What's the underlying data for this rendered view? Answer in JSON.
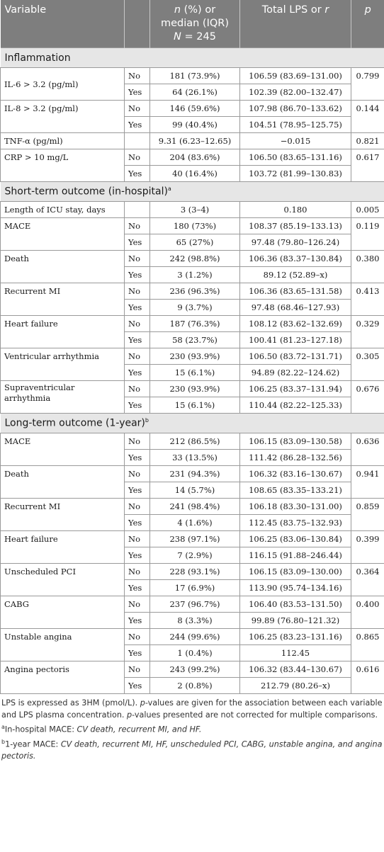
{
  "header": {
    "variable": "Variable",
    "n_line1": "n",
    "n_line1_rest": " (%) or",
    "n_line2": "median (IQR)",
    "n_line3_italic": "N",
    "n_line3_rest": " = 245",
    "lps": "Total LPS or ",
    "lps_r": "r",
    "p": "p"
  },
  "sections": {
    "inflammation": "Inflammation",
    "short_term": "Short-term outcome (in-hospital)",
    "short_term_sup": "a",
    "long_term": "Long-term outcome (1-year)",
    "long_term_sup": "b"
  },
  "rows": {
    "il6": {
      "label": "IL-6 > 3.2 (pg/ml)",
      "p": "0.799",
      "no": {
        "g": "No",
        "n": "181 (73.9%)",
        "lps": "106.59 (83.69–131.00)"
      },
      "yes": {
        "g": "Yes",
        "n": "64 (26.1%)",
        "lps": "102.39 (82.00–132.47)"
      }
    },
    "il8": {
      "label": "IL-8 > 3.2 (pg/ml)",
      "p": "0.144",
      "no": {
        "g": "No",
        "n": "146 (59.6%)",
        "lps": "107.98 (86.70–133.62)"
      },
      "yes": {
        "g": "Yes",
        "n": "99 (40.4%)",
        "lps": "104.51 (78.95–125.75)"
      }
    },
    "tnf": {
      "label": "TNF-α (pg/ml)",
      "n": "9.31 (6.23–12.65)",
      "lps": "−0.015",
      "p": "0.821"
    },
    "crp": {
      "label": "CRP > 10 mg/L",
      "p": "0.617",
      "no": {
        "g": "No",
        "n": "204 (83.6%)",
        "lps": "106.50 (83.65–131.16)"
      },
      "yes": {
        "g": "Yes",
        "n": "40 (16.4%)",
        "lps": "103.72 (81.99–130.83)"
      }
    },
    "icu": {
      "label": "Length of ICU stay, days",
      "n": "3 (3–4)",
      "lps": "0.180",
      "p": "0.005"
    },
    "st_mace": {
      "label": "MACE",
      "p": "0.119",
      "no": {
        "g": "No",
        "n": "180 (73%)",
        "lps": "108.37 (85.19–133.13)"
      },
      "yes": {
        "g": "Yes",
        "n": "65 (27%)",
        "lps": "97.48 (79.80–126.24)"
      }
    },
    "st_death": {
      "label": "Death",
      "p": "0.380",
      "no": {
        "g": "No",
        "n": "242 (98.8%)",
        "lps": "106.36 (83.37–130.84)"
      },
      "yes": {
        "g": "Yes",
        "n": "3 (1.2%)",
        "lps": "89.12 (52.89–x)"
      }
    },
    "st_rmi": {
      "label": "Recurrent MI",
      "p": "0.413",
      "no": {
        "g": "No",
        "n": "236 (96.3%)",
        "lps": "106.36 (83.65–131.58)"
      },
      "yes": {
        "g": "Yes",
        "n": "9 (3.7%)",
        "lps": "97.48 (68.46–127.93)"
      }
    },
    "st_hf": {
      "label": "Heart failure",
      "p": "0.329",
      "no": {
        "g": "No",
        "n": "187 (76.3%)",
        "lps": "108.12 (83.62–132.69)"
      },
      "yes": {
        "g": "Yes",
        "n": "58 (23.7%)",
        "lps": "100.41 (81.23–127.18)"
      }
    },
    "st_va": {
      "label": "Ventricular arrhythmia",
      "p": "0.305",
      "no": {
        "g": "No",
        "n": "230 (93.9%)",
        "lps": "106.50 (83.72–131.71)"
      },
      "yes": {
        "g": "Yes",
        "n": "15 (6.1%)",
        "lps": "94.89 (82.22–124.62)"
      }
    },
    "st_sva": {
      "label": "Supraventricular arrhythmia",
      "p": "0.676",
      "no": {
        "g": "No",
        "n": "230 (93.9%)",
        "lps": "106.25 (83.37–131.94)"
      },
      "yes": {
        "g": "Yes",
        "n": "15 (6.1%)",
        "lps": "110.44 (82.22–125.33)"
      }
    },
    "lt_mace": {
      "label": "MACE",
      "p": "0.636",
      "no": {
        "g": "No",
        "n": "212 (86.5%)",
        "lps": "106.15 (83.09–130.58)"
      },
      "yes": {
        "g": "Yes",
        "n": "33 (13.5%)",
        "lps": "111.42 (86.28–132.56)"
      }
    },
    "lt_death": {
      "label": "Death",
      "p": "0.941",
      "no": {
        "g": "No",
        "n": "231 (94.3%)",
        "lps": "106.32 (83.16–130.67)"
      },
      "yes": {
        "g": "Yes",
        "n": "14 (5.7%)",
        "lps": "108.65 (83.35–133.21)"
      }
    },
    "lt_rmi": {
      "label": "Recurrent MI",
      "p": "0.859",
      "no": {
        "g": "No",
        "n": "241 (98.4%)",
        "lps": "106.18 (83.30–131.00)"
      },
      "yes": {
        "g": "Yes",
        "n": "4 (1.6%)",
        "lps": "112.45 (83.75–132.93)"
      }
    },
    "lt_hf": {
      "label": "Heart failure",
      "p": "0.399",
      "no": {
        "g": "No",
        "n": "238 (97.1%)",
        "lps": "106.25 (83.06–130.84)"
      },
      "yes": {
        "g": "Yes",
        "n": "7 (2.9%)",
        "lps": "116.15 (91.88–246.44)"
      }
    },
    "lt_pci": {
      "label": "Unscheduled PCI",
      "p": "0.364",
      "no": {
        "g": "No",
        "n": "228 (93.1%)",
        "lps": "106.15 (83.09–130.00)"
      },
      "yes": {
        "g": "Yes",
        "n": "17 (6.9%)",
        "lps": "113.90 (95.74–134.16)"
      }
    },
    "lt_cabg": {
      "label": "CABG",
      "p": "0.400",
      "no": {
        "g": "No",
        "n": "237 (96.7%)",
        "lps": "106.40 (83.53–131.50)"
      },
      "yes": {
        "g": "Yes",
        "n": "8 (3.3%)",
        "lps": "99.89 (76.80–121.32)"
      }
    },
    "lt_ua": {
      "label": "Unstable angina",
      "p": "0.865",
      "no": {
        "g": "No",
        "n": "244 (99.6%)",
        "lps": "106.25 (83.23–131.16)"
      },
      "yes": {
        "g": "Yes",
        "n": "1 (0.4%)",
        "lps": "112.45"
      }
    },
    "lt_ap": {
      "label": "Angina pectoris",
      "p": "0.616",
      "no": {
        "g": "No",
        "n": "243 (99.2%)",
        "lps": "106.32 (83.44–130.67)"
      },
      "yes": {
        "g": "Yes",
        "n": "2 (0.8%)",
        "lps": "212.79 (80.26–x)"
      }
    }
  },
  "notes": {
    "n1": "LPS is expressed as 3HM (pmol/L). ",
    "n1_p": "p",
    "n1_b": "-values are given for the association between each variable and LPS plasma concentration. ",
    "n1_p2": "p",
    "n1_c": "-values presented are not corrected for multiple comparisons.",
    "a_sup": "a",
    "a_text": "In-hospital MACE: ",
    "a_italic": "CV death, recurrent MI, and HF.",
    "b_sup": "b",
    "b_text": "1-year MACE: ",
    "b_italic": "CV death, recurrent MI, HF, unscheduled PCI, CABG, unstable angina, and angina pectoris."
  }
}
